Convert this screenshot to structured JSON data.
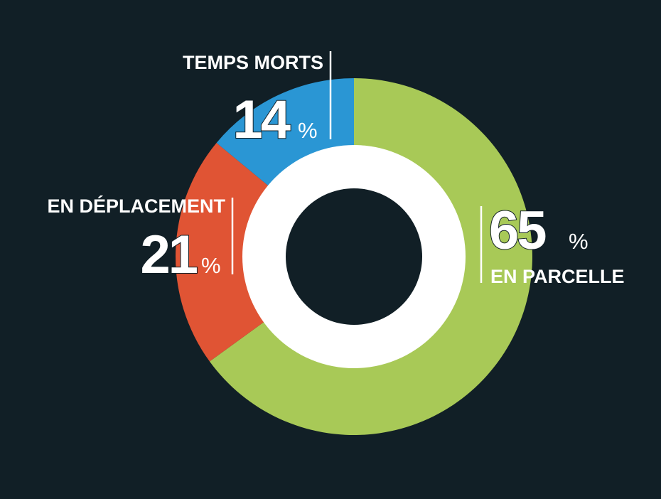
{
  "chart_data": {
    "type": "donut",
    "categories": [
      "EN PARCELLE",
      "EN DÉPLACEMENT",
      "TEMPS MORTS"
    ],
    "values": [
      65,
      21,
      14
    ],
    "unit": "%",
    "colors": [
      "#a8c957",
      "#e05434",
      "#2a96d4"
    ]
  }
}
